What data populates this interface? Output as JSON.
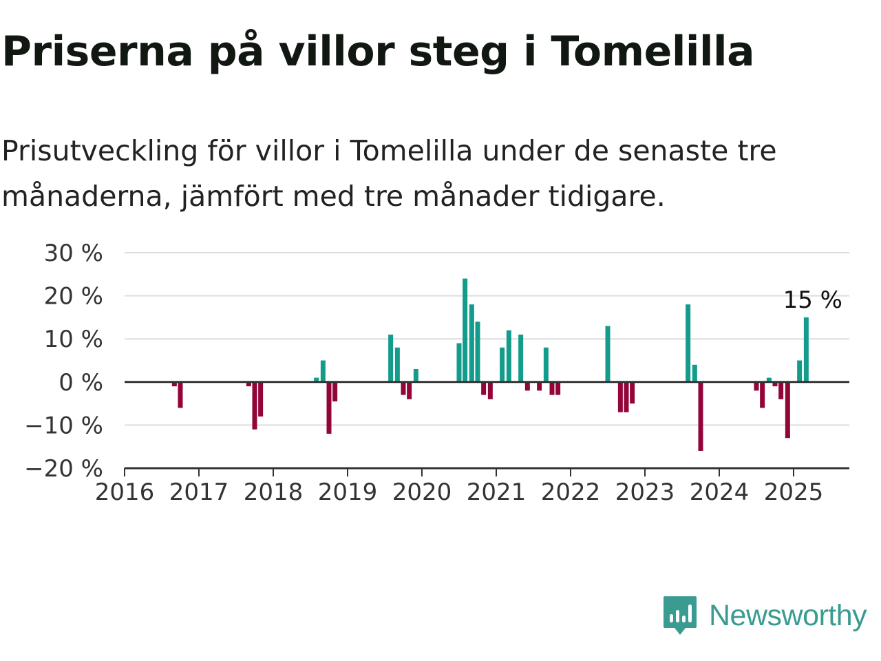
{
  "header": {
    "title": "Priserna på villor steg i Tomelilla",
    "subtitle": "Prisutveckling för villor i Tomelilla under de senaste tre månaderna, jämfört med tre månader tidigare."
  },
  "brand": {
    "name": "Newsworthy",
    "logo_icon": "newsworthy-bar-chart-icon"
  },
  "colors": {
    "positive": "#139b8b",
    "negative": "#930539",
    "grid": "#dddddd",
    "zero": "#333333",
    "brand": "#3a9b91"
  },
  "chart_data": {
    "type": "bar",
    "x_unit": "year (month resolution)",
    "xlim": [
      2016,
      2025.75
    ],
    "ylim": [
      -20,
      30
    ],
    "yticks": [
      -20,
      -10,
      0,
      10,
      20,
      30
    ],
    "ytick_labels": [
      "−20 %",
      "−10 %",
      "0 %",
      "10 %",
      "20 %",
      "30 %"
    ],
    "xticks": [
      2016,
      2017,
      2018,
      2019,
      2020,
      2021,
      2022,
      2023,
      2024,
      2025
    ],
    "xtick_labels": [
      "2016",
      "2017",
      "2018",
      "2019",
      "2020",
      "2021",
      "2022",
      "2023",
      "2024",
      "2025"
    ],
    "grid": true,
    "callout": {
      "x": 2025.17,
      "y": 15,
      "label": "15 %"
    },
    "x": [
      2016.67,
      2016.75,
      2017.67,
      2017.75,
      2017.83,
      2018.58,
      2018.67,
      2018.75,
      2018.83,
      2019.58,
      2019.67,
      2019.75,
      2019.83,
      2019.92,
      2020.5,
      2020.58,
      2020.67,
      2020.75,
      2020.83,
      2020.92,
      2021.08,
      2021.17,
      2021.33,
      2021.42,
      2021.58,
      2021.67,
      2021.75,
      2021.83,
      2022.5,
      2022.67,
      2022.75,
      2022.83,
      2023.58,
      2023.67,
      2023.75,
      2024.5,
      2024.58,
      2024.67,
      2024.75,
      2024.83,
      2024.92,
      2025.08,
      2025.17
    ],
    "values": [
      -1,
      -6,
      -1,
      -11,
      -8,
      1,
      5,
      -12,
      -4.5,
      11,
      8,
      -3,
      -4,
      3,
      9,
      24,
      18,
      14,
      -3,
      -4,
      8,
      12,
      11,
      -2,
      -2,
      8,
      -3,
      -3,
      13,
      -7,
      -7,
      -5,
      18,
      4,
      -16,
      -2,
      -6,
      1,
      -1,
      -4,
      -13,
      5,
      15
    ]
  }
}
